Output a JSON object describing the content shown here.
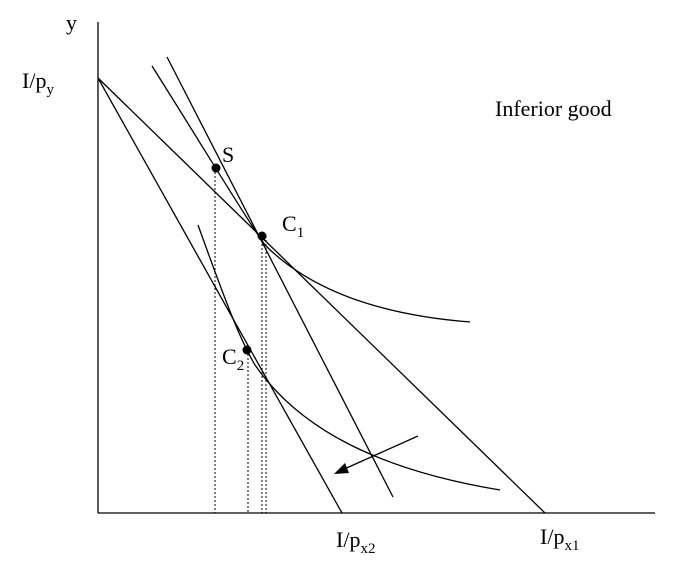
{
  "axes": {
    "y_label": "y",
    "y_intercept_label": {
      "main": "I/p",
      "sub": "y"
    },
    "x_intercept_label_2": {
      "main": "I/p",
      "sub": "x2"
    },
    "x_intercept_label_1": {
      "main": "I/p",
      "sub": "x1"
    }
  },
  "title": "Inferior good",
  "points": {
    "s": "S",
    "c1": {
      "main": "C",
      "sub": "1"
    },
    "c2": {
      "main": "C",
      "sub": "2"
    }
  },
  "colors": {
    "ink": "#000000",
    "background": "#ffffff"
  },
  "icons": {
    "shift": "arrow-icon"
  }
}
